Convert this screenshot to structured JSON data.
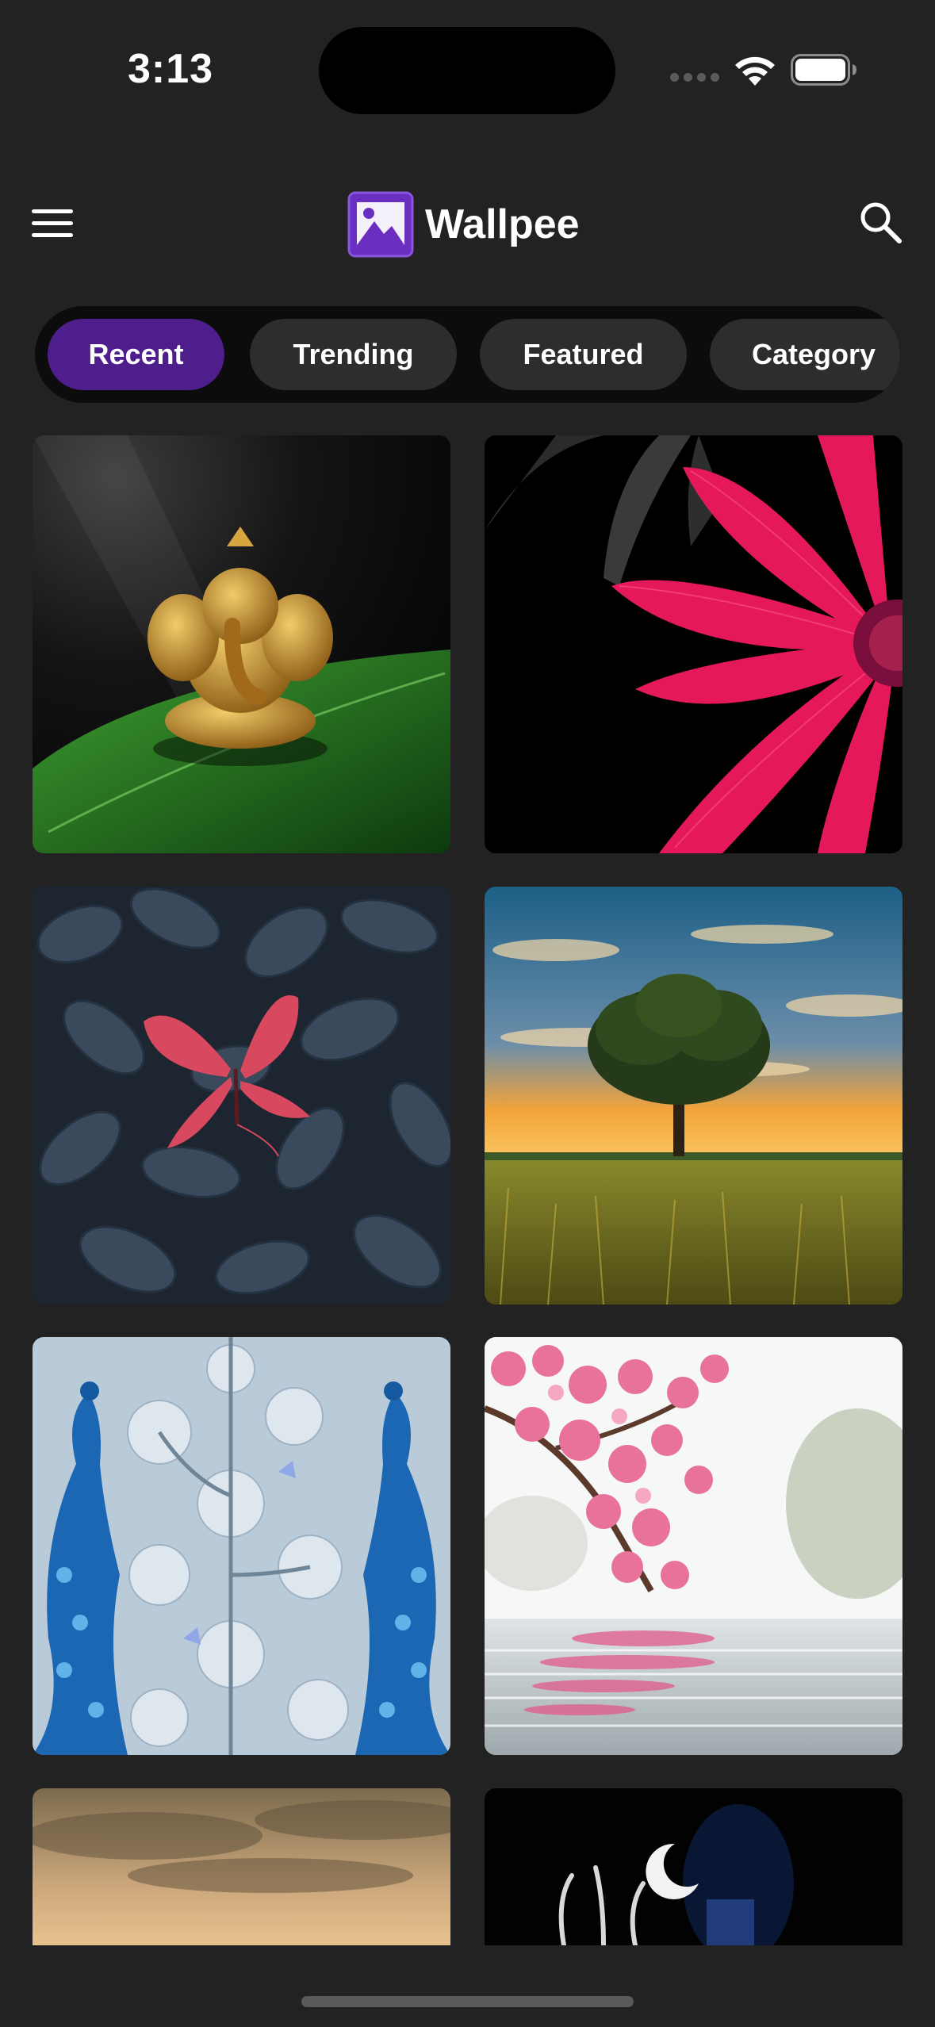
{
  "status_bar": {
    "time": "3:13",
    "wifi_icon": "wifi-icon",
    "battery_icon": "battery-icon",
    "signal_icon": "cellular-signal-icon"
  },
  "header": {
    "app_name": "Wallpee",
    "menu_icon": "hamburger-menu-icon",
    "logo_icon": "image-logo-icon",
    "search_icon": "search-icon"
  },
  "tabs": [
    {
      "label": "Recent",
      "active": true
    },
    {
      "label": "Trending",
      "active": false
    },
    {
      "label": "Featured",
      "active": false
    },
    {
      "label": "Category",
      "active": false
    }
  ],
  "wallpapers": [
    {
      "subject": "golden ganesha on leaf"
    },
    {
      "subject": "pink flower on black"
    },
    {
      "subject": "red butterfly on dark leaves"
    },
    {
      "subject": "tree at sunset field"
    },
    {
      "subject": "blue peacocks with flowers"
    },
    {
      "subject": "cherry blossom reflection"
    },
    {
      "subject": "golden clouds"
    },
    {
      "subject": "dark figure with crescent moon"
    }
  ],
  "colors": {
    "background": "#222223",
    "accent": "#4d1e8c",
    "tab_bg": "#2d2d2f",
    "tabs_track": "#0c0c0d"
  }
}
